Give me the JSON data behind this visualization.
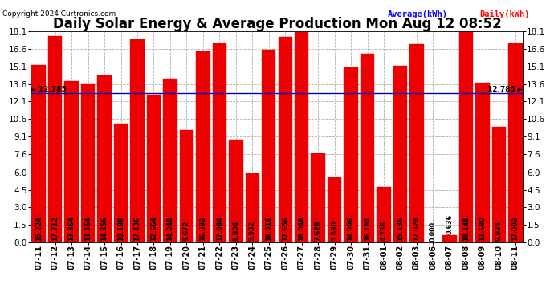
{
  "title": "Daily Solar Energy & Average Production Mon Aug 12 08:52",
  "copyright": "Copyright 2024 Curtronics.com",
  "legend_avg": "Average(kWh)",
  "legend_daily": "Daily(kWh)",
  "average_value": 12.785,
  "ylim": [
    0,
    18.1
  ],
  "yticks": [
    0.0,
    1.5,
    3.0,
    4.5,
    6.0,
    7.6,
    9.1,
    10.6,
    12.1,
    13.6,
    15.1,
    16.6,
    18.1
  ],
  "categories": [
    "07-11",
    "07-12",
    "07-13",
    "07-14",
    "07-15",
    "07-16",
    "07-17",
    "07-18",
    "07-19",
    "07-20",
    "07-21",
    "07-22",
    "07-23",
    "07-24",
    "07-25",
    "07-26",
    "07-27",
    "07-28",
    "07-29",
    "07-30",
    "07-31",
    "08-01",
    "08-02",
    "08-03",
    "08-06",
    "08-07",
    "08-08",
    "08-09",
    "08-10",
    "08-11"
  ],
  "values": [
    15.224,
    17.712,
    13.864,
    13.564,
    14.356,
    10.188,
    17.436,
    12.664,
    14.048,
    9.672,
    16.392,
    17.084,
    8.804,
    5.932,
    16.516,
    17.656,
    18.048,
    7.628,
    5.58,
    14.996,
    16.164,
    4.736,
    15.136,
    17.024,
    0.0,
    0.636,
    18.148,
    13.68,
    9.924,
    17.092
  ],
  "bar_color": "#ee0000",
  "bar_edge_color": "#cc0000",
  "avg_line_color": "#0000bb",
  "title_color": "#000000",
  "copyright_color": "#000000",
  "legend_avg_color": "#0000ff",
  "legend_daily_color": "#ff0000",
  "background_color": "#ffffff",
  "grid_color": "#999999",
  "value_fontsize": 5.8,
  "title_fontsize": 12,
  "tick_fontsize": 7,
  "ytick_fontsize": 7.5
}
